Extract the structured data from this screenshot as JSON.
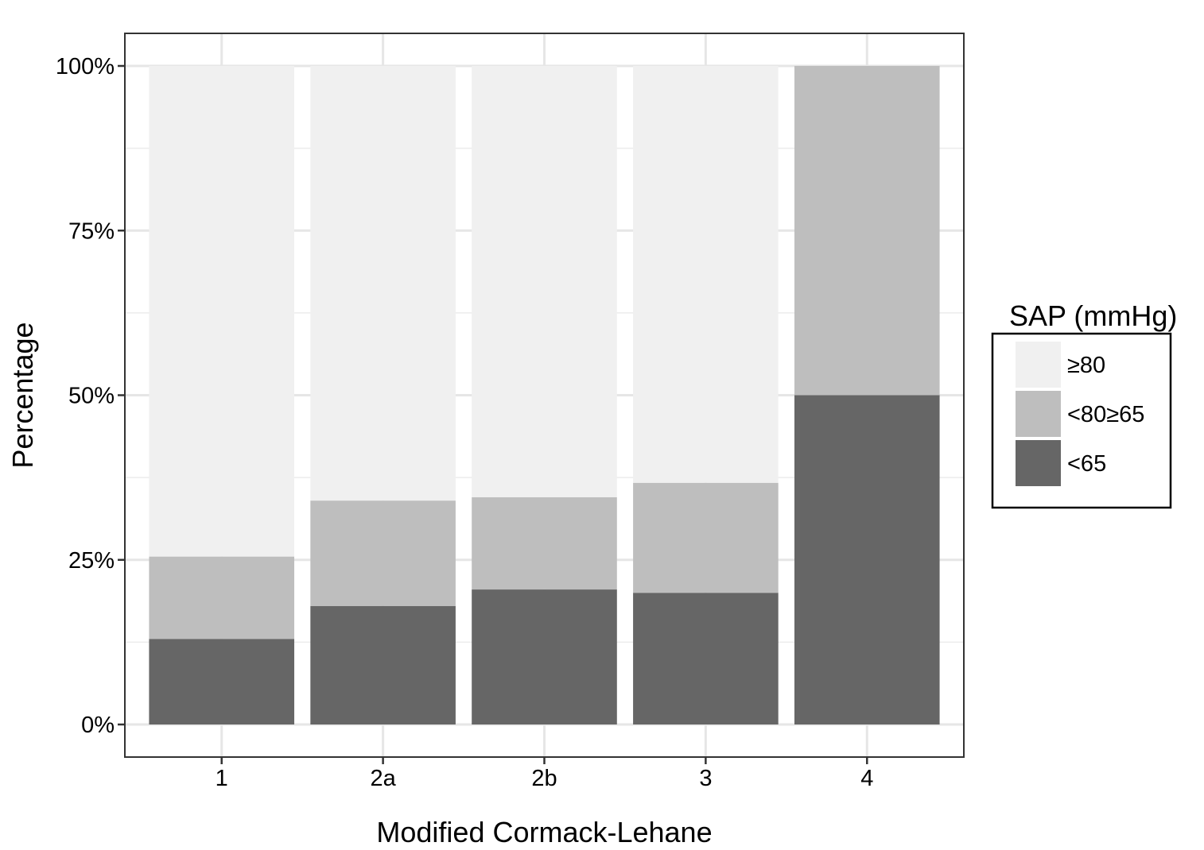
{
  "chart_data": {
    "type": "bar",
    "stacked": true,
    "percent": true,
    "categories": [
      "1",
      "2a",
      "2b",
      "3",
      "4"
    ],
    "series": [
      {
        "name": "<65",
        "color": "#666666",
        "values": [
          13,
          18,
          20.5,
          20,
          50
        ]
      },
      {
        "name": "<80≥65",
        "color": "#bebebe",
        "values": [
          12.5,
          16,
          14,
          16.7,
          50
        ]
      },
      {
        "name": "≥80",
        "color": "#f0f0f0",
        "values": [
          74.5,
          66,
          65.5,
          63.3,
          0
        ]
      }
    ],
    "xlabel": "Modified Cormack-Lehane",
    "ylabel": "Percentage",
    "ylim": [
      -5,
      105
    ],
    "yticks": [
      0,
      25,
      50,
      75,
      100
    ],
    "ytick_labels": [
      "0%",
      "25%",
      "50%",
      "75%",
      "100%"
    ],
    "grid": true,
    "legend": {
      "title": "SAP (mmHg)",
      "position": "right",
      "order": [
        "≥80",
        "<80≥65",
        "<65"
      ]
    }
  }
}
